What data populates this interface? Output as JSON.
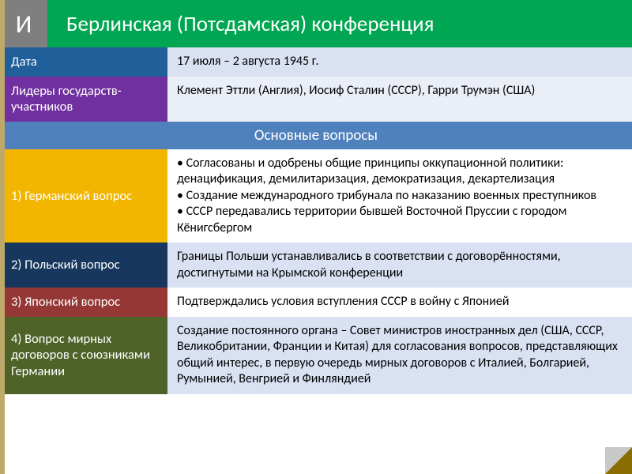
{
  "header": {
    "badge_letter": "И",
    "title": "Берлинская (Потсдамская) конференция",
    "badge_bg": "#7f7f7f",
    "title_bg": "#00a651"
  },
  "accent_bar_color": "#bfa96a",
  "rows": {
    "date": {
      "label": "Дата",
      "label_bg": "#215f9a",
      "value": "17 июля – 2 августа 1945 г.",
      "value_bg": "#d9e1f2"
    },
    "leaders": {
      "label": "Лидеры государств-участников",
      "label_bg": "#7030a0",
      "value": "Клемент Эттли (Англия), Иосиф Сталин (СССР), Гарри Трумэн (США)",
      "value_bg": "#eaeef7"
    }
  },
  "section_header": {
    "text": "Основные вопросы",
    "bg": "#4f81bd"
  },
  "questions": [
    {
      "label": "1) Германский вопрос",
      "label_bg": "#f2b600",
      "value_bg": "#ffffff",
      "bullets": [
        "Согласованы и одобрены общие принципы оккупационной политики: денацификация, демилитаризация, демократизация, декартелизация",
        "Создание международного трибунала по наказанию военных преступников",
        "СССР передавались территории бывшей Восточной Пруссии с городом Кёнигсбергом"
      ]
    },
    {
      "label": "2) Польский вопрос",
      "label_bg": "#17375e",
      "value_bg": "#d9e1f2",
      "text": "Границы Польши устанавливались в соответствии с договорённостями, достигнутыми на Крымской конференции"
    },
    {
      "label": "3) Японский вопрос",
      "label_bg": "#953735",
      "value_bg": "#ffffff",
      "text": "Подтверждались условия вступления СССР в войну с Японией"
    },
    {
      "label": "4) Вопрос мирных договоров с союзниками Германии",
      "label_bg": "#4f6228",
      "value_bg": "#d9e1f2",
      "text": "Создание постоянного органа – Совет министров иностранных дел (США, СССР, Великобритании, Франции и Китая) для согласования вопросов, представляющих общий интерес, в первую очередь мирных договоров с Италией, Болгарией, Румынией, Венгрией и Финляндией"
    }
  ],
  "corner": {
    "size": 34,
    "top_color": "#c8c8c8",
    "shadow_color": "#8a6d00"
  }
}
